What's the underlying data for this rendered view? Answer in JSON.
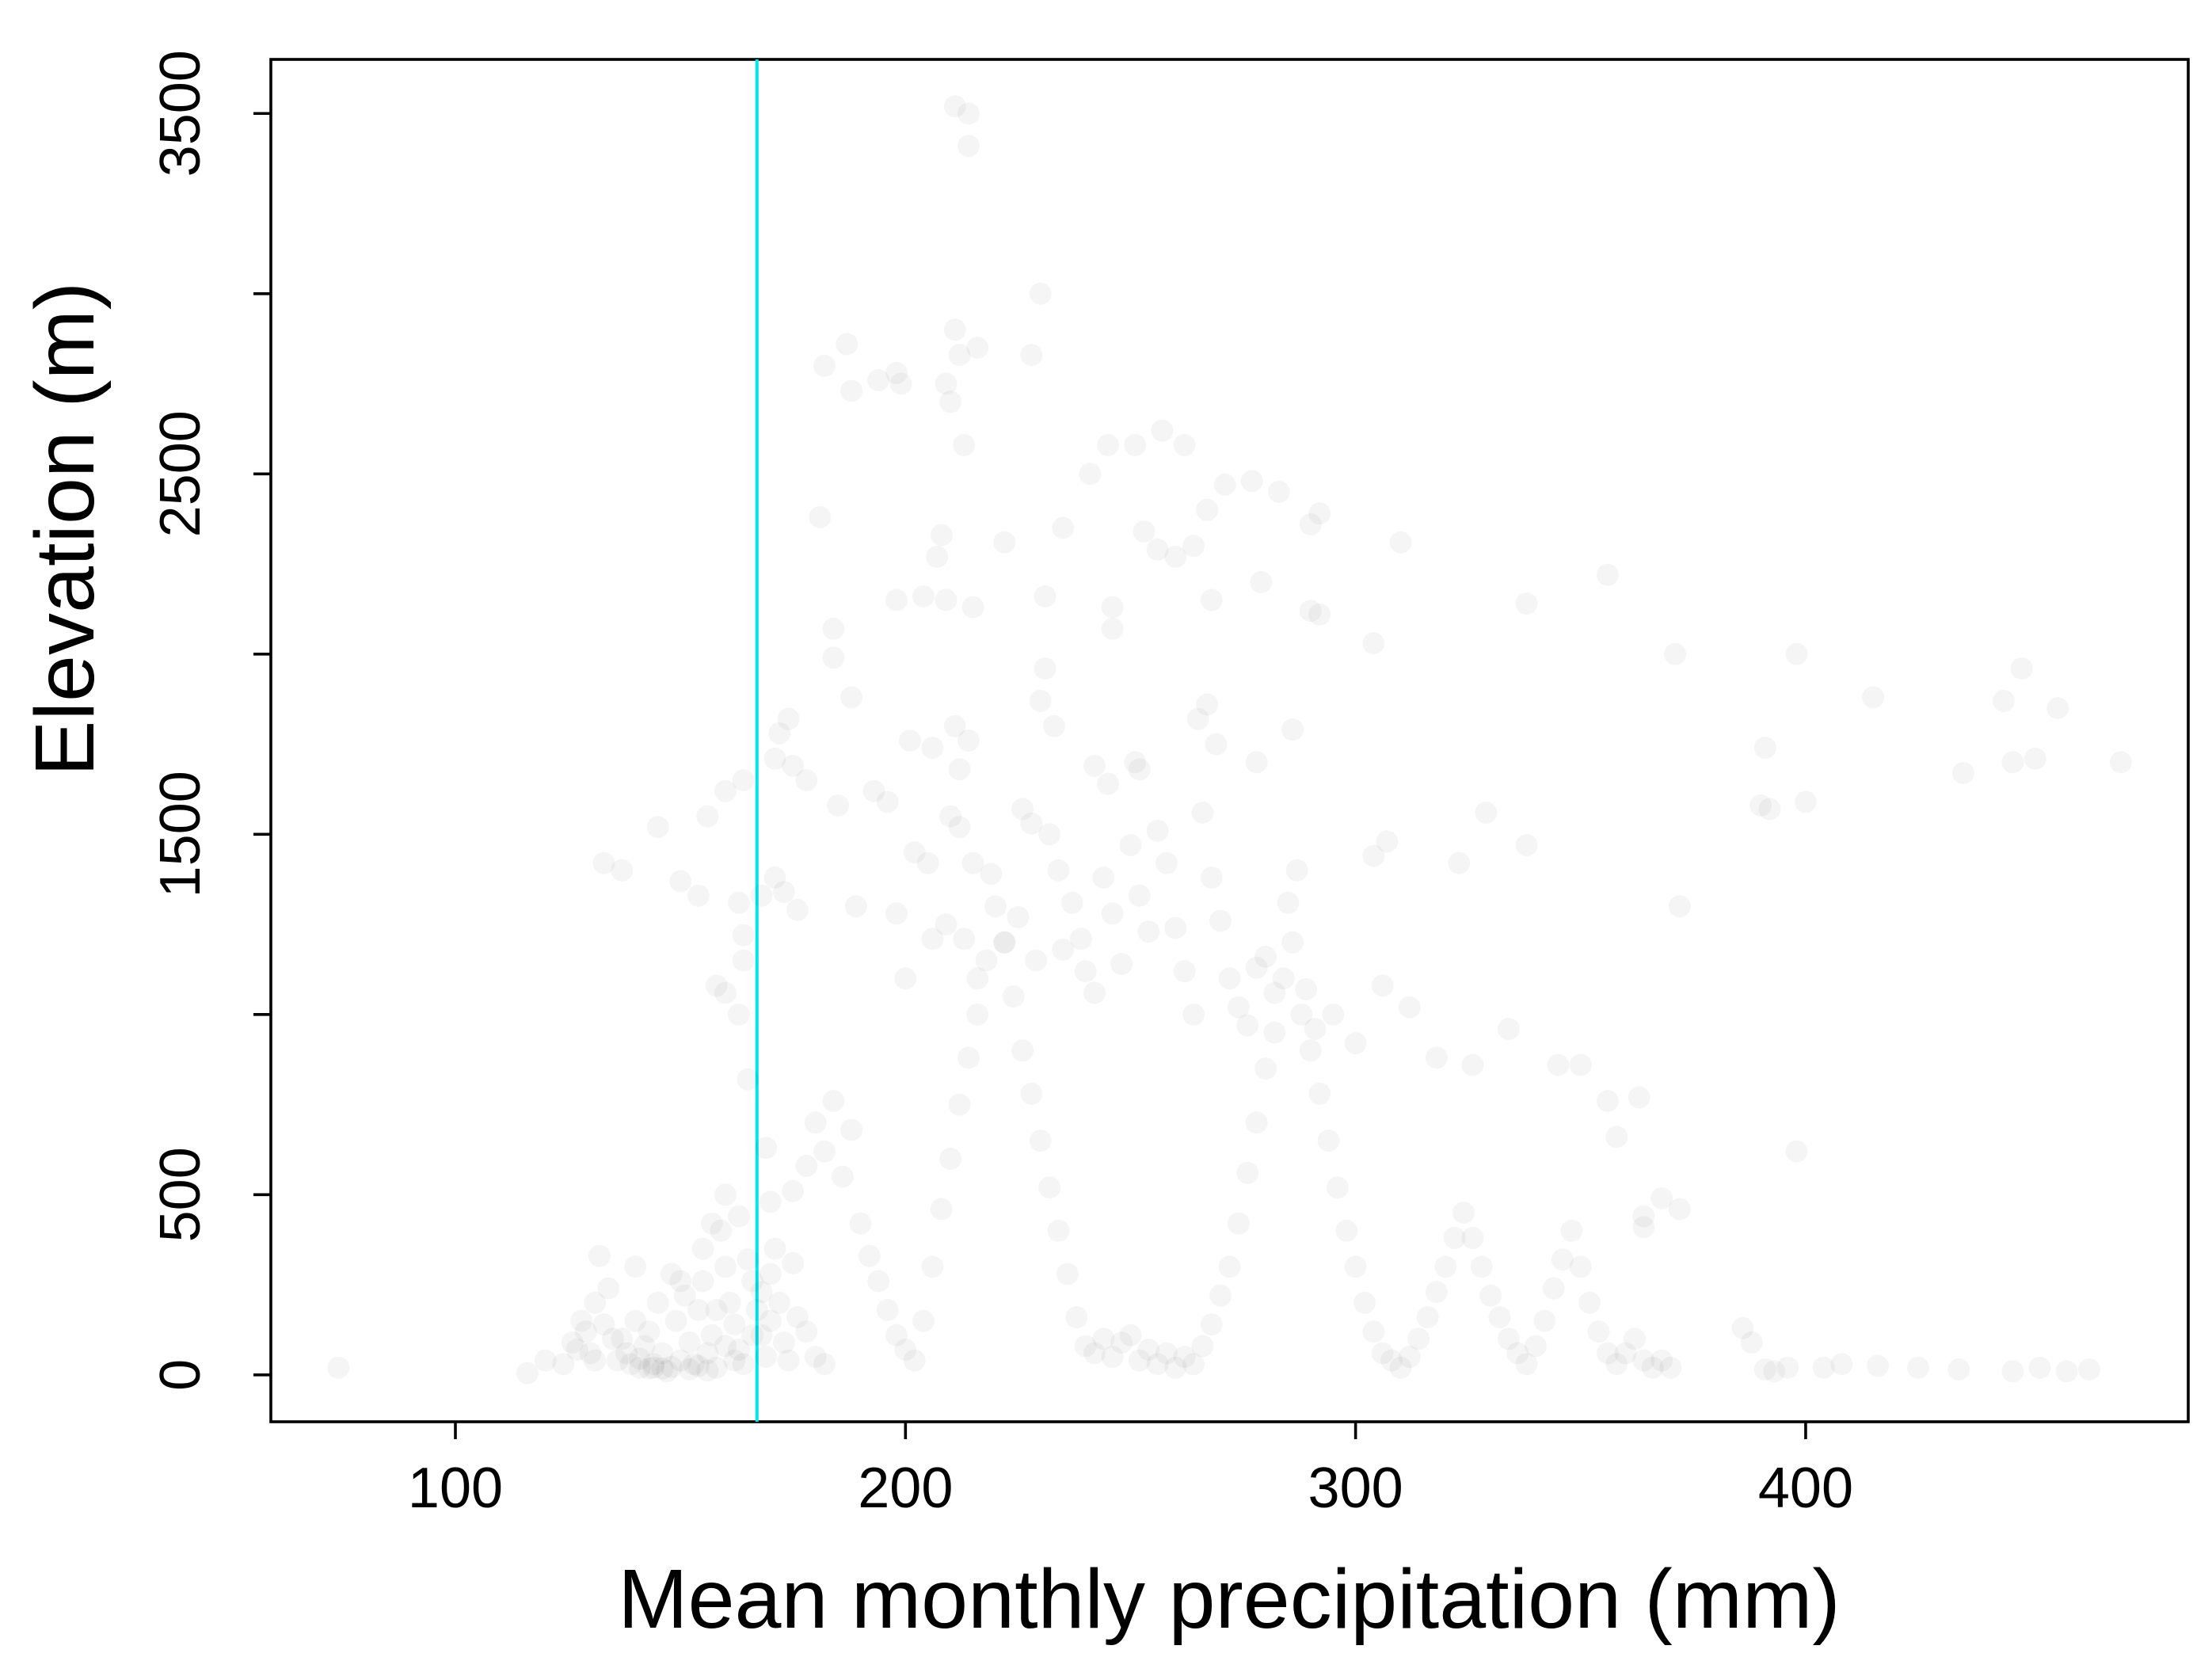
{
  "chart_data": {
    "type": "scatter",
    "title": "",
    "xlabel": "Mean monthly precipitation (mm)",
    "ylabel": "Elevation (m)",
    "xlim": [
      59,
      485
    ],
    "ylim": [
      -130,
      3650
    ],
    "x_ticks": [
      100,
      200,
      300,
      400
    ],
    "y_ticks": [
      0,
      500,
      1000,
      1500,
      2000,
      2500,
      3000,
      3500
    ],
    "y_tick_labels": [
      "0",
      "500",
      "",
      "1500",
      "",
      "2500",
      "",
      "3500"
    ],
    "grid": false,
    "legend": "none",
    "point_color": "#000000",
    "point_alpha": 0.2,
    "reference_line": {
      "orientation": "vertical",
      "x": 167,
      "color": "#00e5ee"
    },
    "points": [
      [
        74,
        20
      ],
      [
        116,
        5
      ],
      [
        120,
        40
      ],
      [
        124,
        30
      ],
      [
        126,
        90
      ],
      [
        128,
        150
      ],
      [
        130,
        60
      ],
      [
        131,
        200
      ],
      [
        132,
        330
      ],
      [
        134,
        240
      ],
      [
        135,
        100
      ],
      [
        136,
        40
      ],
      [
        138,
        60
      ],
      [
        140,
        150
      ],
      [
        140,
        300
      ],
      [
        141,
        20
      ],
      [
        142,
        80
      ],
      [
        143,
        120
      ],
      [
        144,
        30
      ],
      [
        145,
        200
      ],
      [
        146,
        60
      ],
      [
        147,
        10
      ],
      [
        148,
        280
      ],
      [
        149,
        150
      ],
      [
        150,
        40
      ],
      [
        151,
        220
      ],
      [
        152,
        90
      ],
      [
        153,
        30
      ],
      [
        154,
        180
      ],
      [
        155,
        260
      ],
      [
        156,
        60
      ],
      [
        157,
        110
      ],
      [
        158,
        20
      ],
      [
        159,
        400
      ],
      [
        160,
        300
      ],
      [
        161,
        200
      ],
      [
        162,
        140
      ],
      [
        163,
        70
      ],
      [
        164,
        30
      ],
      [
        165,
        320
      ],
      [
        166,
        260
      ],
      [
        167,
        180
      ],
      [
        168,
        110
      ],
      [
        169,
        50
      ],
      [
        170,
        280
      ],
      [
        171,
        350
      ],
      [
        172,
        200
      ],
      [
        173,
        90
      ],
      [
        174,
        40
      ],
      [
        175,
        310
      ],
      [
        176,
        160
      ],
      [
        178,
        120
      ],
      [
        180,
        50
      ],
      [
        182,
        30
      ],
      [
        144,
        20
      ],
      [
        146,
        18
      ],
      [
        148,
        22
      ],
      [
        152,
        15
      ],
      [
        154,
        25
      ],
      [
        156,
        12
      ],
      [
        139,
        30
      ],
      [
        141,
        45
      ],
      [
        143,
        18
      ],
      [
        137,
        100
      ],
      [
        133,
        140
      ],
      [
        129,
        120
      ],
      [
        127,
        70
      ],
      [
        131,
        40
      ],
      [
        160,
        80
      ],
      [
        162,
        40
      ],
      [
        170,
        150
      ],
      [
        168,
        230
      ],
      [
        166,
        110
      ],
      [
        158,
        180
      ],
      [
        150,
        260
      ],
      [
        155,
        350
      ],
      [
        157,
        420
      ],
      [
        160,
        500
      ],
      [
        163,
        440
      ],
      [
        170,
        480
      ],
      [
        175,
        510
      ],
      [
        178,
        580
      ],
      [
        180,
        700
      ],
      [
        182,
        620
      ],
      [
        184,
        760
      ],
      [
        186,
        550
      ],
      [
        188,
        680
      ],
      [
        190,
        420
      ],
      [
        192,
        330
      ],
      [
        194,
        260
      ],
      [
        196,
        180
      ],
      [
        198,
        110
      ],
      [
        200,
        70
      ],
      [
        202,
        40
      ],
      [
        204,
        150
      ],
      [
        206,
        300
      ],
      [
        208,
        460
      ],
      [
        210,
        600
      ],
      [
        212,
        750
      ],
      [
        214,
        880
      ],
      [
        216,
        1000
      ],
      [
        218,
        1150
      ],
      [
        220,
        1300
      ],
      [
        222,
        1200
      ],
      [
        224,
        1050
      ],
      [
        226,
        900
      ],
      [
        228,
        780
      ],
      [
        230,
        650
      ],
      [
        232,
        520
      ],
      [
        234,
        400
      ],
      [
        236,
        280
      ],
      [
        238,
        160
      ],
      [
        240,
        80
      ],
      [
        242,
        60
      ],
      [
        244,
        100
      ],
      [
        246,
        50
      ],
      [
        248,
        90
      ],
      [
        250,
        110
      ],
      [
        252,
        40
      ],
      [
        254,
        70
      ],
      [
        256,
        30
      ],
      [
        258,
        60
      ],
      [
        260,
        20
      ],
      [
        262,
        50
      ],
      [
        264,
        30
      ],
      [
        266,
        80
      ],
      [
        268,
        140
      ],
      [
        270,
        220
      ],
      [
        272,
        300
      ],
      [
        274,
        420
      ],
      [
        276,
        560
      ],
      [
        278,
        700
      ],
      [
        280,
        850
      ],
      [
        282,
        950
      ],
      [
        284,
        1100
      ],
      [
        286,
        1200
      ],
      [
        288,
        1000
      ],
      [
        290,
        900
      ],
      [
        292,
        780
      ],
      [
        294,
        650
      ],
      [
        296,
        520
      ],
      [
        298,
        400
      ],
      [
        300,
        300
      ],
      [
        302,
        200
      ],
      [
        304,
        120
      ],
      [
        306,
        60
      ],
      [
        308,
        40
      ],
      [
        310,
        20
      ],
      [
        312,
        50
      ],
      [
        314,
        100
      ],
      [
        316,
        160
      ],
      [
        318,
        230
      ],
      [
        320,
        300
      ],
      [
        322,
        380
      ],
      [
        324,
        450
      ],
      [
        326,
        380
      ],
      [
        328,
        300
      ],
      [
        330,
        220
      ],
      [
        332,
        160
      ],
      [
        334,
        100
      ],
      [
        336,
        60
      ],
      [
        338,
        30
      ],
      [
        340,
        80
      ],
      [
        342,
        150
      ],
      [
        344,
        240
      ],
      [
        346,
        320
      ],
      [
        348,
        400
      ],
      [
        350,
        300
      ],
      [
        352,
        200
      ],
      [
        354,
        120
      ],
      [
        356,
        60
      ],
      [
        358,
        30
      ],
      [
        360,
        60
      ],
      [
        362,
        100
      ],
      [
        364,
        40
      ],
      [
        366,
        20
      ],
      [
        368,
        40
      ],
      [
        370,
        20
      ],
      [
        182,
        2800
      ],
      [
        187,
        2860
      ],
      [
        188,
        2730
      ],
      [
        194,
        2760
      ],
      [
        198,
        2780
      ],
      [
        199,
        2750
      ],
      [
        209,
        2750
      ],
      [
        210,
        2700
      ],
      [
        211,
        2900
      ],
      [
        212,
        2830
      ],
      [
        216,
        2850
      ],
      [
        213,
        2580
      ],
      [
        228,
        2830
      ],
      [
        230,
        3000
      ],
      [
        211,
        3520
      ],
      [
        214,
        3500
      ],
      [
        214,
        3410
      ],
      [
        245,
        2580
      ],
      [
        251,
        2580
      ],
      [
        257,
        2620
      ],
      [
        262,
        2580
      ],
      [
        241,
        2500
      ],
      [
        267,
        2400
      ],
      [
        271,
        2470
      ],
      [
        277,
        2480
      ],
      [
        283,
        2450
      ],
      [
        292,
        2390
      ],
      [
        290,
        2360
      ],
      [
        310,
        2310
      ],
      [
        181,
        2380
      ],
      [
        208,
        2330
      ],
      [
        207,
        2270
      ],
      [
        222,
        2310
      ],
      [
        235,
        2350
      ],
      [
        253,
        2340
      ],
      [
        256,
        2290
      ],
      [
        260,
        2270
      ],
      [
        264,
        2300
      ],
      [
        198,
        2150
      ],
      [
        204,
        2160
      ],
      [
        209,
        2150
      ],
      [
        215,
        2130
      ],
      [
        231,
        2160
      ],
      [
        246,
        2130
      ],
      [
        246,
        2070
      ],
      [
        268,
        2150
      ],
      [
        279,
        2200
      ],
      [
        290,
        2120
      ],
      [
        292,
        2110
      ],
      [
        304,
        2030
      ],
      [
        338,
        2140
      ],
      [
        356,
        2220
      ],
      [
        371,
        2000
      ],
      [
        398,
        2000
      ],
      [
        415,
        1880
      ],
      [
        444,
        1870
      ],
      [
        448,
        1960
      ],
      [
        456,
        1850
      ],
      [
        470,
        1700
      ],
      [
        446,
        1700
      ],
      [
        451,
        1710
      ],
      [
        435,
        1670
      ],
      [
        391,
        1740
      ],
      [
        392,
        1570
      ],
      [
        390,
        1580
      ],
      [
        400,
        1590
      ],
      [
        372,
        1300
      ],
      [
        398,
        620
      ],
      [
        396,
        20
      ],
      [
        184,
        2070
      ],
      [
        184,
        1990
      ],
      [
        188,
        1880
      ],
      [
        201,
        1760
      ],
      [
        206,
        1740
      ],
      [
        211,
        1800
      ],
      [
        212,
        1680
      ],
      [
        214,
        1760
      ],
      [
        230,
        1870
      ],
      [
        233,
        1800
      ],
      [
        231,
        1960
      ],
      [
        242,
        1690
      ],
      [
        245,
        1640
      ],
      [
        251,
        1700
      ],
      [
        252,
        1680
      ],
      [
        267,
        1860
      ],
      [
        265,
        1820
      ],
      [
        269,
        1750
      ],
      [
        278,
        1700
      ],
      [
        286,
        1790
      ],
      [
        160,
        1620
      ],
      [
        164,
        1650
      ],
      [
        172,
        1780
      ],
      [
        174,
        1820
      ],
      [
        171,
        1710
      ],
      [
        175,
        1690
      ],
      [
        178,
        1650
      ],
      [
        156,
        1550
      ],
      [
        145,
        1520
      ],
      [
        133,
        1420
      ],
      [
        137,
        1400
      ],
      [
        150,
        1370
      ],
      [
        154,
        1330
      ],
      [
        163,
        1310
      ],
      [
        168,
        1330
      ],
      [
        171,
        1380
      ],
      [
        173,
        1340
      ],
      [
        176,
        1290
      ],
      [
        164,
        1220
      ],
      [
        164,
        1150
      ],
      [
        158,
        1080
      ],
      [
        160,
        1060
      ],
      [
        163,
        1000
      ],
      [
        165,
        820
      ],
      [
        169,
        630
      ],
      [
        185,
        1580
      ],
      [
        189,
        1300
      ],
      [
        193,
        1620
      ],
      [
        196,
        1590
      ],
      [
        198,
        1280
      ],
      [
        200,
        1100
      ],
      [
        202,
        1450
      ],
      [
        205,
        1420
      ],
      [
        206,
        1210
      ],
      [
        209,
        1250
      ],
      [
        210,
        1550
      ],
      [
        212,
        1520
      ],
      [
        213,
        1210
      ],
      [
        215,
        1420
      ],
      [
        216,
        1100
      ],
      [
        219,
        1390
      ],
      [
        222,
        1200
      ],
      [
        225,
        1270
      ],
      [
        226,
        1570
      ],
      [
        228,
        1530
      ],
      [
        229,
        1150
      ],
      [
        232,
        1500
      ],
      [
        234,
        1400
      ],
      [
        235,
        1180
      ],
      [
        237,
        1310
      ],
      [
        239,
        1210
      ],
      [
        240,
        1120
      ],
      [
        242,
        1060
      ],
      [
        244,
        1380
      ],
      [
        246,
        1280
      ],
      [
        248,
        1140
      ],
      [
        250,
        1470
      ],
      [
        252,
        1330
      ],
      [
        254,
        1230
      ],
      [
        256,
        1510
      ],
      [
        258,
        1420
      ],
      [
        260,
        1240
      ],
      [
        262,
        1120
      ],
      [
        264,
        1000
      ],
      [
        266,
        1560
      ],
      [
        268,
        1380
      ],
      [
        270,
        1260
      ],
      [
        272,
        1100
      ],
      [
        274,
        1020
      ],
      [
        276,
        970
      ],
      [
        278,
        1130
      ],
      [
        280,
        1160
      ],
      [
        282,
        1060
      ],
      [
        285,
        1310
      ],
      [
        287,
        1400
      ],
      [
        289,
        1070
      ],
      [
        291,
        960
      ],
      [
        295,
        1000
      ],
      [
        300,
        920
      ],
      [
        306,
        1080
      ],
      [
        312,
        1020
      ],
      [
        318,
        880
      ],
      [
        323,
        1420
      ],
      [
        326,
        860
      ],
      [
        329,
        1560
      ],
      [
        334,
        960
      ],
      [
        338,
        1470
      ],
      [
        345,
        860
      ],
      [
        350,
        860
      ],
      [
        356,
        760
      ],
      [
        358,
        660
      ],
      [
        363,
        770
      ],
      [
        364,
        440
      ],
      [
        364,
        410
      ],
      [
        368,
        490
      ],
      [
        372,
        460
      ],
      [
        386,
        130
      ],
      [
        388,
        90
      ],
      [
        391,
        15
      ],
      [
        393,
        10
      ],
      [
        404,
        20
      ],
      [
        408,
        30
      ],
      [
        416,
        25
      ],
      [
        425,
        20
      ],
      [
        434,
        15
      ],
      [
        446,
        10
      ],
      [
        452,
        20
      ],
      [
        458,
        10
      ],
      [
        463,
        15
      ],
      [
        304,
        1440
      ],
      [
        307,
        1480
      ]
    ]
  }
}
